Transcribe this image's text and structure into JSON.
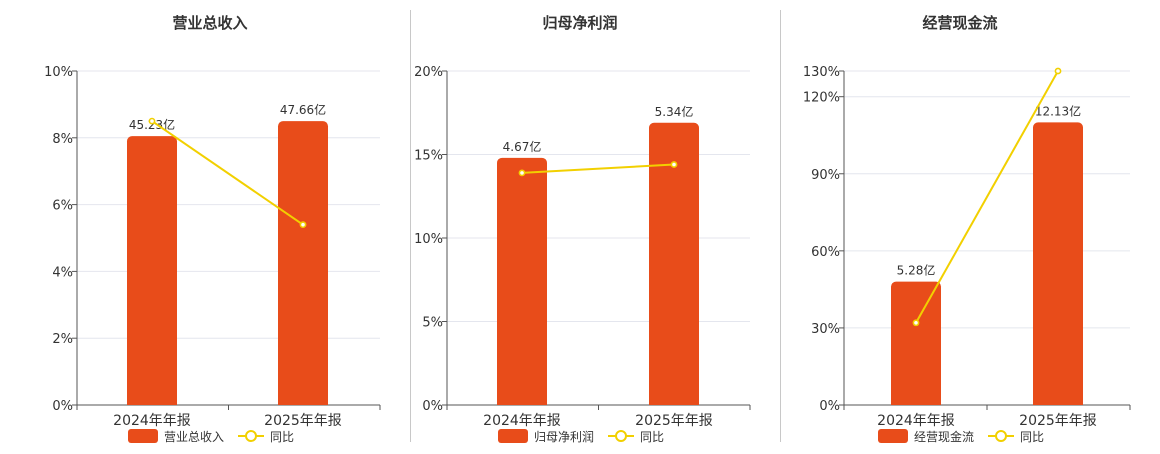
{
  "colors": {
    "bar": "#e84c1a",
    "line": "#f2d000",
    "grid": "#e4e6ee",
    "axis": "#555555",
    "text": "#333333"
  },
  "chart_data": [
    {
      "type": "bar",
      "title": "营业总收入",
      "categories": [
        "2024年年报",
        "2025年年报"
      ],
      "series": [
        {
          "name": "营业总收入",
          "kind": "bar",
          "values": [
            8.05,
            8.5
          ],
          "labels": [
            "45.23亿",
            "47.66亿"
          ]
        },
        {
          "name": "同比",
          "kind": "line",
          "values": [
            8.5,
            5.4
          ]
        }
      ],
      "y_ticks": [
        "0%",
        "2%",
        "4%",
        "6%",
        "8%",
        "10%"
      ],
      "ylim": [
        0,
        10
      ],
      "grid": true,
      "legend": "bottom"
    },
    {
      "type": "bar",
      "title": "归母净利润",
      "categories": [
        "2024年年报",
        "2025年年报"
      ],
      "series": [
        {
          "name": "归母净利润",
          "kind": "bar",
          "values": [
            14.8,
            16.9
          ],
          "labels": [
            "4.67亿",
            "5.34亿"
          ]
        },
        {
          "name": "同比",
          "kind": "line",
          "values": [
            13.9,
            14.4
          ]
        }
      ],
      "y_ticks": [
        "0%",
        "5%",
        "10%",
        "15%",
        "20%"
      ],
      "ylim": [
        0,
        20
      ],
      "grid": true,
      "legend": "bottom"
    },
    {
      "type": "bar",
      "title": "经营现金流",
      "categories": [
        "2024年年报",
        "2025年年报"
      ],
      "series": [
        {
          "name": "经营现金流",
          "kind": "bar",
          "values": [
            48,
            110
          ],
          "labels": [
            "5.28亿",
            "12.13亿"
          ]
        },
        {
          "name": "同比",
          "kind": "line",
          "values": [
            32,
            130
          ]
        }
      ],
      "y_ticks": [
        "0%",
        "30%",
        "60%",
        "90%",
        "120%",
        "130%"
      ],
      "y_tick_values": [
        0,
        30,
        60,
        90,
        120,
        130
      ],
      "ylim": [
        0,
        130
      ],
      "grid": true,
      "legend": "bottom"
    }
  ]
}
